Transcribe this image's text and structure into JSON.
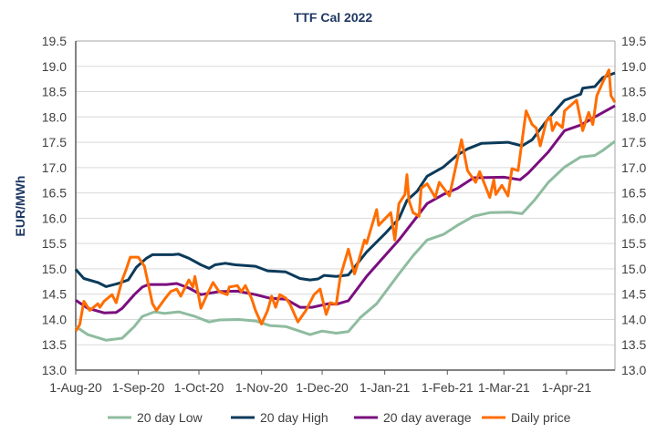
{
  "chart_data": {
    "type": "line",
    "title": "TTF Cal 2022",
    "ylabel": "EUR/MWh",
    "xlabel": "",
    "ylim": [
      13.0,
      19.5
    ],
    "yticks": [
      "13.0",
      "13.5",
      "14.0",
      "14.5",
      "15.0",
      "15.5",
      "16.0",
      "16.5",
      "17.0",
      "17.5",
      "18.0",
      "18.5",
      "19.0",
      "19.5"
    ],
    "secondary_y_axis": true,
    "xlim": [
      "2020-08-01",
      "2021-04-25"
    ],
    "xticks": [
      {
        "date": "2020-08-01",
        "label": "1-Aug-20"
      },
      {
        "date": "2020-09-01",
        "label": "1-Sep-20"
      },
      {
        "date": "2020-10-01",
        "label": "1-Oct-20"
      },
      {
        "date": "2020-11-01",
        "label": "1-Nov-20"
      },
      {
        "date": "2020-12-01",
        "label": "1-Dec-20"
      },
      {
        "date": "2021-01-01",
        "label": "1-Jan-21"
      },
      {
        "date": "2021-02-01",
        "label": "1-Feb-21"
      },
      {
        "date": "2021-03-01",
        "label": "1-Mar-21"
      },
      {
        "date": "2021-04-01",
        "label": "1-Apr-21"
      }
    ],
    "grid": "horizontal",
    "legend": "bottom",
    "series": [
      {
        "name": "20 day Low",
        "color": "#8fbc9f",
        "points": [
          [
            "2020-08-01",
            13.86
          ],
          [
            "2020-08-07",
            13.7
          ],
          [
            "2020-08-16",
            13.59
          ],
          [
            "2020-08-24",
            13.63
          ],
          [
            "2020-08-30",
            13.86
          ],
          [
            "2020-09-03",
            14.06
          ],
          [
            "2020-09-09",
            14.15
          ],
          [
            "2020-09-14",
            14.12
          ],
          [
            "2020-09-21",
            14.15
          ],
          [
            "2020-09-29",
            14.06
          ],
          [
            "2020-10-06",
            13.95
          ],
          [
            "2020-10-11",
            13.99
          ],
          [
            "2020-10-21",
            14.0
          ],
          [
            "2020-10-29",
            13.97
          ],
          [
            "2020-11-05",
            13.88
          ],
          [
            "2020-11-13",
            13.86
          ],
          [
            "2020-11-25",
            13.7
          ],
          [
            "2020-12-01",
            13.77
          ],
          [
            "2020-12-08",
            13.73
          ],
          [
            "2020-12-14",
            13.76
          ],
          [
            "2020-12-20",
            14.04
          ],
          [
            "2020-12-28",
            14.31
          ],
          [
            "2021-01-08",
            14.9
          ],
          [
            "2021-01-15",
            15.26
          ],
          [
            "2021-01-22",
            15.57
          ],
          [
            "2021-01-30",
            15.68
          ],
          [
            "2021-02-06",
            15.86
          ],
          [
            "2021-02-14",
            16.04
          ],
          [
            "2021-02-22",
            16.11
          ],
          [
            "2021-03-04",
            16.12
          ],
          [
            "2021-03-10",
            16.09
          ],
          [
            "2021-03-16",
            16.35
          ],
          [
            "2021-03-23",
            16.71
          ],
          [
            "2021-03-31",
            17.01
          ],
          [
            "2021-04-08",
            17.21
          ],
          [
            "2021-04-15",
            17.24
          ],
          [
            "2021-04-19",
            17.34
          ],
          [
            "2021-04-25",
            17.52
          ]
        ]
      },
      {
        "name": "20 day High",
        "color": "#0b3a5a",
        "points": [
          [
            "2020-08-01",
            14.99
          ],
          [
            "2020-08-05",
            14.81
          ],
          [
            "2020-08-12",
            14.73
          ],
          [
            "2020-08-16",
            14.65
          ],
          [
            "2020-08-22",
            14.71
          ],
          [
            "2020-08-27",
            14.78
          ],
          [
            "2020-08-31",
            15.03
          ],
          [
            "2020-09-05",
            15.21
          ],
          [
            "2020-09-08",
            15.28
          ],
          [
            "2020-09-18",
            15.28
          ],
          [
            "2020-09-21",
            15.29
          ],
          [
            "2020-09-26",
            15.21
          ],
          [
            "2020-10-02",
            15.08
          ],
          [
            "2020-10-06",
            15.01
          ],
          [
            "2020-10-09",
            15.08
          ],
          [
            "2020-10-14",
            15.11
          ],
          [
            "2020-10-19",
            15.08
          ],
          [
            "2020-10-29",
            15.05
          ],
          [
            "2020-11-04",
            14.96
          ],
          [
            "2020-11-13",
            14.94
          ],
          [
            "2020-11-20",
            14.81
          ],
          [
            "2020-11-25",
            14.78
          ],
          [
            "2020-11-29",
            14.8
          ],
          [
            "2020-12-02",
            14.87
          ],
          [
            "2020-12-08",
            14.85
          ],
          [
            "2020-12-14",
            14.88
          ],
          [
            "2020-12-23",
            15.33
          ],
          [
            "2021-01-01",
            15.69
          ],
          [
            "2021-01-08",
            15.99
          ],
          [
            "2021-01-12",
            16.35
          ],
          [
            "2021-01-17",
            16.53
          ],
          [
            "2021-01-22",
            16.83
          ],
          [
            "2021-01-30",
            17.01
          ],
          [
            "2021-02-06",
            17.25
          ],
          [
            "2021-02-11",
            17.37
          ],
          [
            "2021-02-18",
            17.48
          ],
          [
            "2021-03-03",
            17.5
          ],
          [
            "2021-03-10",
            17.43
          ],
          [
            "2021-03-15",
            17.55
          ],
          [
            "2021-03-23",
            17.97
          ],
          [
            "2021-03-31",
            18.33
          ],
          [
            "2021-04-08",
            18.45
          ],
          [
            "2021-04-09",
            18.57
          ],
          [
            "2021-04-15",
            18.6
          ],
          [
            "2021-04-19",
            18.78
          ],
          [
            "2021-04-25",
            18.87
          ]
        ]
      },
      {
        "name": "20 day average",
        "color": "#7b0e7e",
        "points": [
          [
            "2020-08-01",
            14.38
          ],
          [
            "2020-08-07",
            14.22
          ],
          [
            "2020-08-15",
            14.13
          ],
          [
            "2020-08-21",
            14.14
          ],
          [
            "2020-08-24",
            14.22
          ],
          [
            "2020-08-30",
            14.49
          ],
          [
            "2020-09-03",
            14.64
          ],
          [
            "2020-09-06",
            14.69
          ],
          [
            "2020-09-15",
            14.69
          ],
          [
            "2020-09-20",
            14.71
          ],
          [
            "2020-09-26",
            14.62
          ],
          [
            "2020-10-02",
            14.49
          ],
          [
            "2020-10-11",
            14.55
          ],
          [
            "2020-10-20",
            14.56
          ],
          [
            "2020-10-29",
            14.49
          ],
          [
            "2020-11-05",
            14.42
          ],
          [
            "2020-11-13",
            14.4
          ],
          [
            "2020-11-20",
            14.24
          ],
          [
            "2020-11-26",
            14.24
          ],
          [
            "2020-12-04",
            14.31
          ],
          [
            "2020-12-08",
            14.3
          ],
          [
            "2020-12-14",
            14.37
          ],
          [
            "2020-12-23",
            14.85
          ],
          [
            "2020-12-31",
            15.21
          ],
          [
            "2021-01-08",
            15.57
          ],
          [
            "2021-01-15",
            15.93
          ],
          [
            "2021-01-22",
            16.29
          ],
          [
            "2021-01-30",
            16.47
          ],
          [
            "2021-02-06",
            16.59
          ],
          [
            "2021-02-14",
            16.8
          ],
          [
            "2021-03-01",
            16.81
          ],
          [
            "2021-03-09",
            16.76
          ],
          [
            "2021-03-13",
            16.89
          ],
          [
            "2021-03-23",
            17.31
          ],
          [
            "2021-03-31",
            17.73
          ],
          [
            "2021-04-08",
            17.84
          ],
          [
            "2021-04-15",
            18.0
          ],
          [
            "2021-04-25",
            18.22
          ]
        ]
      },
      {
        "name": "Daily price",
        "color": "#ff6d00",
        "points": [
          [
            "2020-08-01",
            13.77
          ],
          [
            "2020-08-03",
            13.9
          ],
          [
            "2020-08-05",
            14.36
          ],
          [
            "2020-08-08",
            14.18
          ],
          [
            "2020-08-12",
            14.31
          ],
          [
            "2020-08-13",
            14.24
          ],
          [
            "2020-08-15",
            14.36
          ],
          [
            "2020-08-19",
            14.49
          ],
          [
            "2020-08-21",
            14.33
          ],
          [
            "2020-08-24",
            14.78
          ],
          [
            "2020-08-26",
            14.99
          ],
          [
            "2020-08-28",
            15.23
          ],
          [
            "2020-09-01",
            15.23
          ],
          [
            "2020-09-04",
            15.05
          ],
          [
            "2020-09-08",
            14.31
          ],
          [
            "2020-09-10",
            14.18
          ],
          [
            "2020-09-14",
            14.4
          ],
          [
            "2020-09-17",
            14.55
          ],
          [
            "2020-09-20",
            14.6
          ],
          [
            "2020-09-22",
            14.46
          ],
          [
            "2020-09-26",
            14.78
          ],
          [
            "2020-09-28",
            14.64
          ],
          [
            "2020-09-29",
            14.85
          ],
          [
            "2020-10-02",
            14.22
          ],
          [
            "2020-10-05",
            14.49
          ],
          [
            "2020-10-08",
            14.73
          ],
          [
            "2020-10-11",
            14.55
          ],
          [
            "2020-10-15",
            14.49
          ],
          [
            "2020-10-16",
            14.64
          ],
          [
            "2020-10-20",
            14.67
          ],
          [
            "2020-10-22",
            14.55
          ],
          [
            "2020-10-24",
            14.67
          ],
          [
            "2020-10-27",
            14.42
          ],
          [
            "2020-10-29",
            14.18
          ],
          [
            "2020-11-01",
            13.91
          ],
          [
            "2020-11-04",
            14.18
          ],
          [
            "2020-11-06",
            14.46
          ],
          [
            "2020-11-08",
            14.24
          ],
          [
            "2020-11-10",
            14.49
          ],
          [
            "2020-11-13",
            14.42
          ],
          [
            "2020-11-15",
            14.31
          ],
          [
            "2020-11-19",
            13.95
          ],
          [
            "2020-11-23",
            14.18
          ],
          [
            "2020-11-27",
            14.49
          ],
          [
            "2020-11-30",
            14.6
          ],
          [
            "2020-12-03",
            14.1
          ],
          [
            "2020-12-05",
            14.33
          ],
          [
            "2020-12-08",
            14.3
          ],
          [
            "2020-12-10",
            14.85
          ],
          [
            "2020-12-14",
            15.39
          ],
          [
            "2020-12-17",
            14.9
          ],
          [
            "2020-12-19",
            15.15
          ],
          [
            "2020-12-22",
            15.57
          ],
          [
            "2020-12-23",
            15.5
          ],
          [
            "2020-12-28",
            16.17
          ],
          [
            "2020-12-29",
            15.86
          ],
          [
            "2021-01-04",
            16.11
          ],
          [
            "2021-01-06",
            15.57
          ],
          [
            "2021-01-08",
            16.29
          ],
          [
            "2021-01-11",
            16.47
          ],
          [
            "2021-01-12",
            16.86
          ],
          [
            "2021-01-13",
            16.35
          ],
          [
            "2021-01-15",
            16.11
          ],
          [
            "2021-01-18",
            16.04
          ],
          [
            "2021-01-19",
            16.59
          ],
          [
            "2021-01-22",
            16.68
          ],
          [
            "2021-01-26",
            16.41
          ],
          [
            "2021-01-28",
            16.71
          ],
          [
            "2021-02-02",
            16.44
          ],
          [
            "2021-02-04",
            16.8
          ],
          [
            "2021-02-08",
            17.55
          ],
          [
            "2021-02-11",
            16.94
          ],
          [
            "2021-02-15",
            16.71
          ],
          [
            "2021-02-17",
            16.92
          ],
          [
            "2021-02-22",
            16.41
          ],
          [
            "2021-02-24",
            16.76
          ],
          [
            "2021-02-25",
            16.47
          ],
          [
            "2021-02-28",
            16.65
          ],
          [
            "2021-03-03",
            16.44
          ],
          [
            "2021-03-05",
            16.98
          ],
          [
            "2021-03-08",
            16.94
          ],
          [
            "2021-03-12",
            18.12
          ],
          [
            "2021-03-15",
            17.85
          ],
          [
            "2021-03-17",
            17.78
          ],
          [
            "2021-03-19",
            17.43
          ],
          [
            "2021-03-22",
            17.91
          ],
          [
            "2021-03-24",
            18.0
          ],
          [
            "2021-03-25",
            17.73
          ],
          [
            "2021-03-27",
            17.89
          ],
          [
            "2021-03-30",
            17.79
          ],
          [
            "2021-03-31",
            18.12
          ],
          [
            "2021-04-06",
            18.33
          ],
          [
            "2021-04-09",
            17.73
          ],
          [
            "2021-04-12",
            18.09
          ],
          [
            "2021-04-14",
            17.85
          ],
          [
            "2021-04-16",
            18.42
          ],
          [
            "2021-04-19",
            18.69
          ],
          [
            "2021-04-22",
            18.93
          ],
          [
            "2021-04-23",
            18.42
          ],
          [
            "2021-04-25",
            18.29
          ]
        ]
      }
    ]
  }
}
